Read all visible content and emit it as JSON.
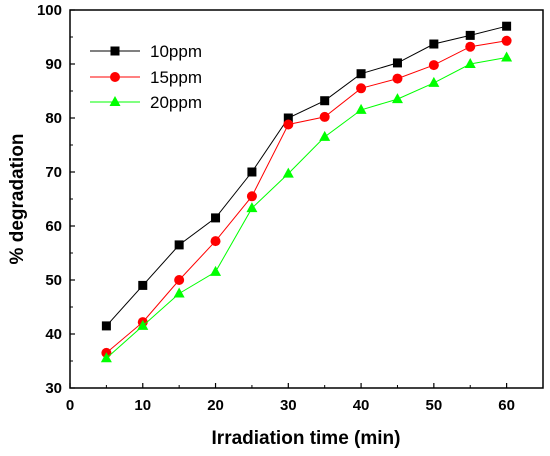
{
  "chart_data": {
    "type": "line",
    "title": "",
    "xlabel": "Irradiation time (min)",
    "ylabel": "% degradation",
    "xlim": [
      0,
      65
    ],
    "ylim": [
      30,
      100
    ],
    "xticks": [
      0,
      10,
      20,
      30,
      40,
      50,
      60
    ],
    "yticks": [
      30,
      40,
      50,
      60,
      70,
      80,
      90,
      100
    ],
    "grid": false,
    "legend_position": "top-left",
    "x": [
      5,
      10,
      15,
      20,
      25,
      30,
      35,
      40,
      45,
      50,
      55,
      60
    ],
    "series": [
      {
        "name": "10ppm",
        "color": "#000000",
        "marker": "square",
        "values": [
          41.5,
          49.0,
          56.5,
          61.5,
          70.0,
          80.0,
          83.2,
          88.2,
          90.2,
          93.7,
          95.3,
          97.0
        ]
      },
      {
        "name": "15ppm",
        "color": "#ff0000",
        "marker": "circle",
        "values": [
          36.5,
          42.2,
          50.0,
          57.2,
          65.5,
          78.8,
          80.2,
          85.5,
          87.3,
          89.8,
          93.2,
          94.3
        ]
      },
      {
        "name": "20ppm",
        "color": "#00ff00",
        "marker": "triangle",
        "values": [
          35.5,
          41.5,
          47.5,
          51.5,
          63.3,
          69.7,
          76.5,
          81.5,
          83.5,
          86.5,
          90.0,
          91.2
        ]
      }
    ]
  }
}
